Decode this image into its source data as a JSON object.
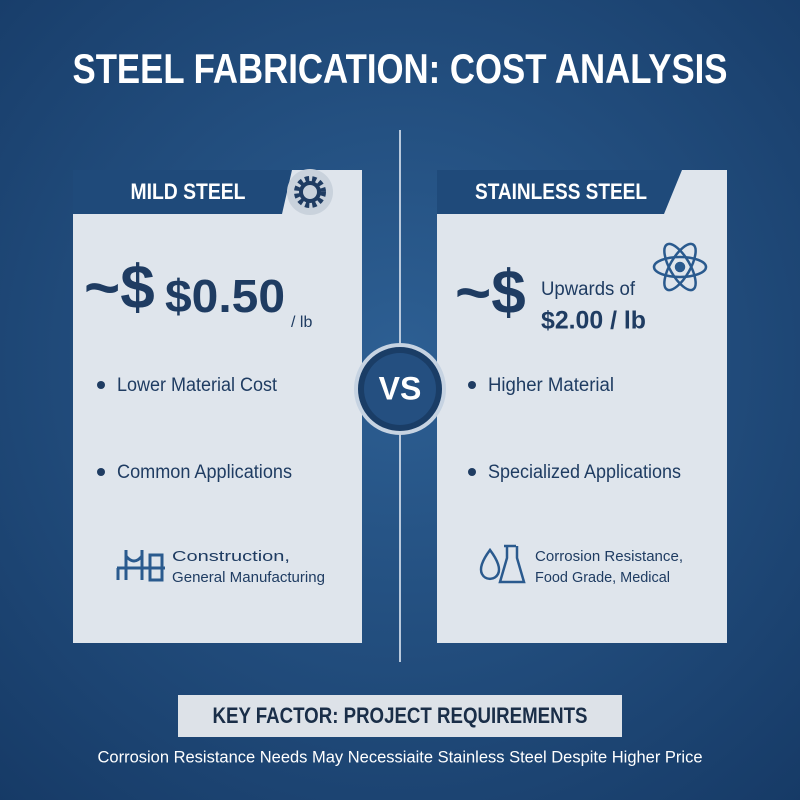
{
  "title": "STEEL FABRICATION: COST ANALYSIS",
  "cards": [
    {
      "header": "MILD STEEL",
      "price": {
        "symbol": "~$",
        "amount": "$0.50",
        "unit": "/ lb"
      },
      "bullets": [
        "Lower Material Cost",
        "Common Applications"
      ],
      "applications": [
        "Construction,",
        "General Manufacturing"
      ]
    },
    {
      "header": "STAINLESS STEEL",
      "price": {
        "symbol": "~$",
        "prefix": "Upwards of",
        "amount": "$2.00 / lb"
      },
      "bullets": [
        "Higher Material",
        "Specialized Applications"
      ],
      "applications": [
        "Corrosion Resistance,",
        "Food Grade, Medical"
      ]
    }
  ],
  "divider": "VS",
  "footer": {
    "heading": "KEY FACTOR: PROJECT REQUIREMENTS",
    "note": "Corrosion Resistance Needs May Necessiaite Stainless Steel Despite Higher Price"
  }
}
